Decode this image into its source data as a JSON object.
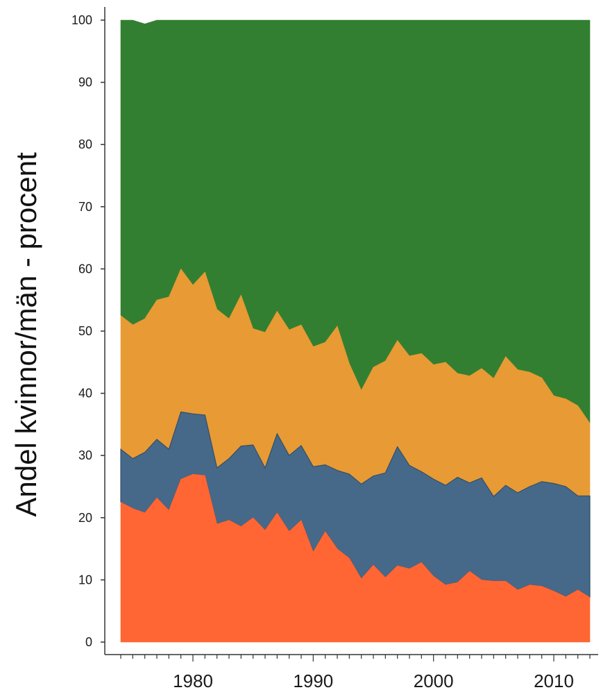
{
  "chart_data": {
    "type": "area",
    "stacked": true,
    "title": "",
    "xlabel": "",
    "ylabel": "Andel kvinnor/män - procent",
    "xlim": [
      1974,
      2013
    ],
    "ylim": [
      0,
      100
    ],
    "yticks": [
      0,
      10,
      20,
      30,
      40,
      50,
      60,
      70,
      80,
      90,
      100
    ],
    "xticks": [
      1980,
      1990,
      2000,
      2010
    ],
    "legend": "none",
    "grid": false,
    "x": [
      1974,
      1975,
      1976,
      1977,
      1978,
      1979,
      1980,
      1981,
      1982,
      1983,
      1984,
      1985,
      1986,
      1987,
      1988,
      1989,
      1990,
      1991,
      1992,
      1993,
      1994,
      1995,
      1996,
      1997,
      1998,
      1999,
      2000,
      2001,
      2002,
      2003,
      2004,
      2005,
      2006,
      2007,
      2008,
      2009,
      2010,
      2011,
      2012,
      2013
    ],
    "series": [
      {
        "color": "#ff6633",
        "values": [
          22.5,
          21.5,
          20.8,
          23.2,
          21.2,
          26.2,
          27,
          26.8,
          19,
          19.6,
          18.6,
          20,
          18,
          20.8,
          17.8,
          19.6,
          14.5,
          17.8,
          15,
          13.5,
          10.2,
          12.4,
          10.4,
          12.3,
          11.8,
          12.8,
          10.6,
          9.2,
          9.6,
          11.4,
          10,
          9.8,
          9.8,
          8.4,
          9.2,
          9,
          8.2,
          7.3,
          8.4,
          7.2
        ]
      },
      {
        "color": "#46698a",
        "values": [
          31,
          29.5,
          30.5,
          32.6,
          31,
          37,
          36.7,
          36.5,
          28,
          29.5,
          31.5,
          31.7,
          28,
          33.5,
          30,
          31.6,
          28.2,
          28.5,
          27.6,
          27,
          25.4,
          26.7,
          27.2,
          31.4,
          28.4,
          27.4,
          26.2,
          25.2,
          26.5,
          25.6,
          26.4,
          23.4,
          25.2,
          24,
          25,
          25.8,
          25.5,
          25,
          23.5,
          23.5
        ]
      },
      {
        "color": "#e89a34",
        "values": [
          52.5,
          51,
          52,
          55,
          55.5,
          60,
          57.4,
          59.5,
          53.5,
          52,
          55.8,
          50.4,
          49.8,
          53.2,
          50.2,
          51,
          47.5,
          48.2,
          50.8,
          44.8,
          40.5,
          44.2,
          45.2,
          48.5,
          46,
          46.4,
          44.6,
          45,
          43.2,
          42.8,
          44,
          42.4,
          45.9,
          43.8,
          43.4,
          42.5,
          39.6,
          39.1,
          38,
          35.2
        ]
      },
      {
        "color": "#337f31",
        "values": [
          100,
          100,
          99.4,
          100,
          100,
          100,
          100,
          100,
          100,
          100,
          100,
          100,
          100,
          100,
          100,
          100,
          100,
          100,
          100,
          100,
          100,
          100,
          100,
          100,
          100,
          100,
          100,
          100,
          100,
          100,
          100,
          100,
          100,
          100,
          100,
          100,
          100,
          100,
          100,
          100
        ]
      }
    ]
  }
}
